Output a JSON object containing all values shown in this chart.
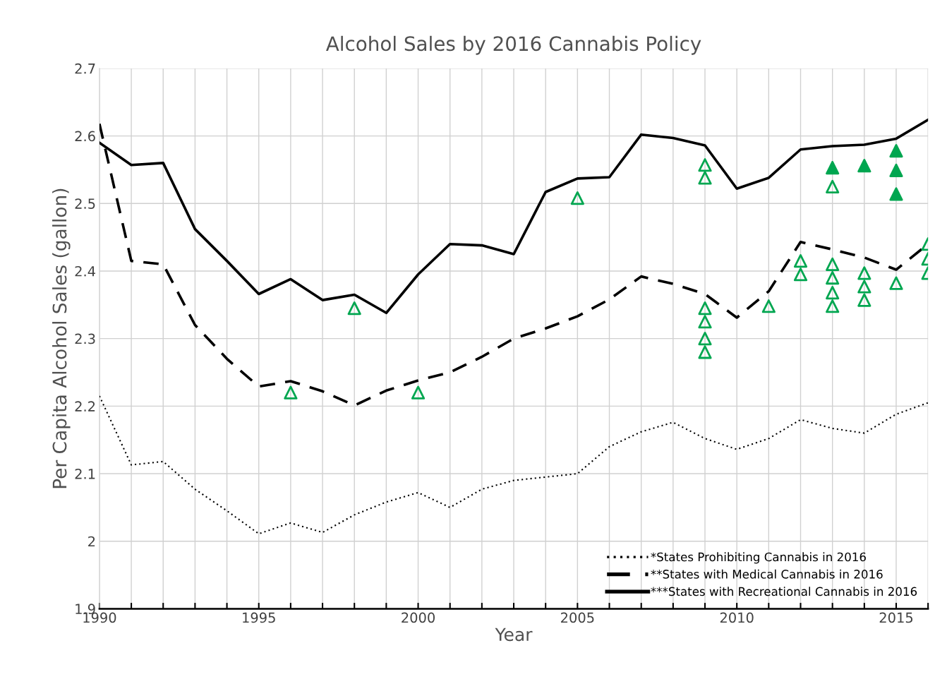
{
  "chart_data": {
    "type": "line",
    "title": "Alcohol Sales by 2016 Cannabis Policy",
    "xlabel": "Year",
    "ylabel": "Per Capita Alcohol Sales (gallon)",
    "x": [
      1990,
      1991,
      1992,
      1993,
      1994,
      1995,
      1996,
      1997,
      1998,
      1999,
      2000,
      2001,
      2002,
      2003,
      2004,
      2005,
      2006,
      2007,
      2008,
      2009,
      2010,
      2011,
      2012,
      2013,
      2014,
      2015,
      2016
    ],
    "xlim": [
      1990,
      2016
    ],
    "xticks": [
      1990,
      {
        "value": 1991,
        "label": null
      },
      {
        "value": 1992,
        "label": null
      },
      {
        "value": 1993,
        "label": null
      },
      {
        "value": 1994,
        "label": null
      },
      1995,
      {
        "value": 1996,
        "label": null
      },
      {
        "value": 1997,
        "label": null
      },
      {
        "value": 1998,
        "label": null
      },
      {
        "value": 1999,
        "label": null
      },
      2000,
      {
        "value": 2001,
        "label": null
      },
      {
        "value": 2002,
        "label": null
      },
      {
        "value": 2003,
        "label": null
      },
      {
        "value": 2004,
        "label": null
      },
      2005,
      {
        "value": 2006,
        "label": null
      },
      {
        "value": 2007,
        "label": null
      },
      {
        "value": 2008,
        "label": null
      },
      {
        "value": 2009,
        "label": null
      },
      2010,
      {
        "value": 2011,
        "label": null
      },
      {
        "value": 2012,
        "label": null
      },
      {
        "value": 2013,
        "label": null
      },
      {
        "value": 2014,
        "label": null
      },
      2015,
      {
        "value": 2016,
        "label": null
      }
    ],
    "ylim": [
      1.9,
      2.7
    ],
    "yticks": [
      1.9,
      2,
      2.1,
      2.2,
      2.3,
      2.4,
      2.5,
      2.6,
      2.7
    ],
    "grid": true,
    "legend": "bottom right",
    "marker": "none",
    "series": [
      {
        "name": "*States Prohibiting Cannabis in 2016",
        "color": "#000000",
        "line_style": "dotted",
        "values": [
          2.215,
          2.113,
          2.118,
          2.077,
          2.045,
          2.011,
          2.027,
          2.013,
          2.039,
          2.058,
          2.072,
          2.05,
          2.077,
          2.09,
          2.095,
          2.1,
          2.14,
          2.162,
          2.176,
          2.152,
          2.136,
          2.152,
          2.18,
          2.167,
          2.16,
          2.188,
          2.205
        ]
      },
      {
        "name": "**States with Medical Cannabis in 2016",
        "color": "#000000",
        "line_style": "dashed",
        "values": [
          2.618,
          2.415,
          2.41,
          2.32,
          2.27,
          2.229,
          2.237,
          2.222,
          2.201,
          2.223,
          2.238,
          2.25,
          2.273,
          2.3,
          2.315,
          2.333,
          2.358,
          2.392,
          2.381,
          2.366,
          2.331,
          2.37,
          2.443,
          2.432,
          2.42,
          2.402,
          2.44
        ]
      },
      {
        "name": "***States with Recreational Cannabis in 2016",
        "color": "#000000",
        "line_style": "solid",
        "values": [
          2.59,
          2.557,
          2.56,
          2.462,
          2.415,
          2.366,
          2.388,
          2.357,
          2.365,
          2.338,
          2.395,
          2.44,
          2.438,
          2.425,
          2.517,
          2.537,
          2.539,
          2.602,
          2.597,
          2.586,
          2.522,
          2.538,
          2.58,
          2.585,
          2.587,
          2.596,
          2.624
        ]
      },
      {
        "type": "scatter",
        "color": "#00a650",
        "marker": "triangle-open",
        "x": [
          1996,
          1998,
          2000,
          2005,
          2009,
          2009,
          2009,
          2009,
          2009,
          2009,
          2011,
          2012,
          2012,
          2013,
          2013,
          2013,
          2013,
          2013,
          2014,
          2014,
          2014,
          2015,
          2016,
          2016,
          2016
        ],
        "values": [
          2.22,
          2.345,
          2.22,
          2.508,
          2.557,
          2.538,
          2.345,
          2.325,
          2.3,
          2.28,
          2.348,
          2.415,
          2.395,
          2.525,
          2.41,
          2.39,
          2.368,
          2.348,
          2.397,
          2.377,
          2.357,
          2.382,
          2.44,
          2.418,
          2.397
        ]
      },
      {
        "type": "scatter",
        "color": "#00a650",
        "marker": "triangle",
        "x": [
          2013,
          2014,
          2015,
          2015,
          2015
        ],
        "values": [
          2.553,
          2.556,
          2.578,
          2.549,
          2.514
        ]
      }
    ]
  }
}
